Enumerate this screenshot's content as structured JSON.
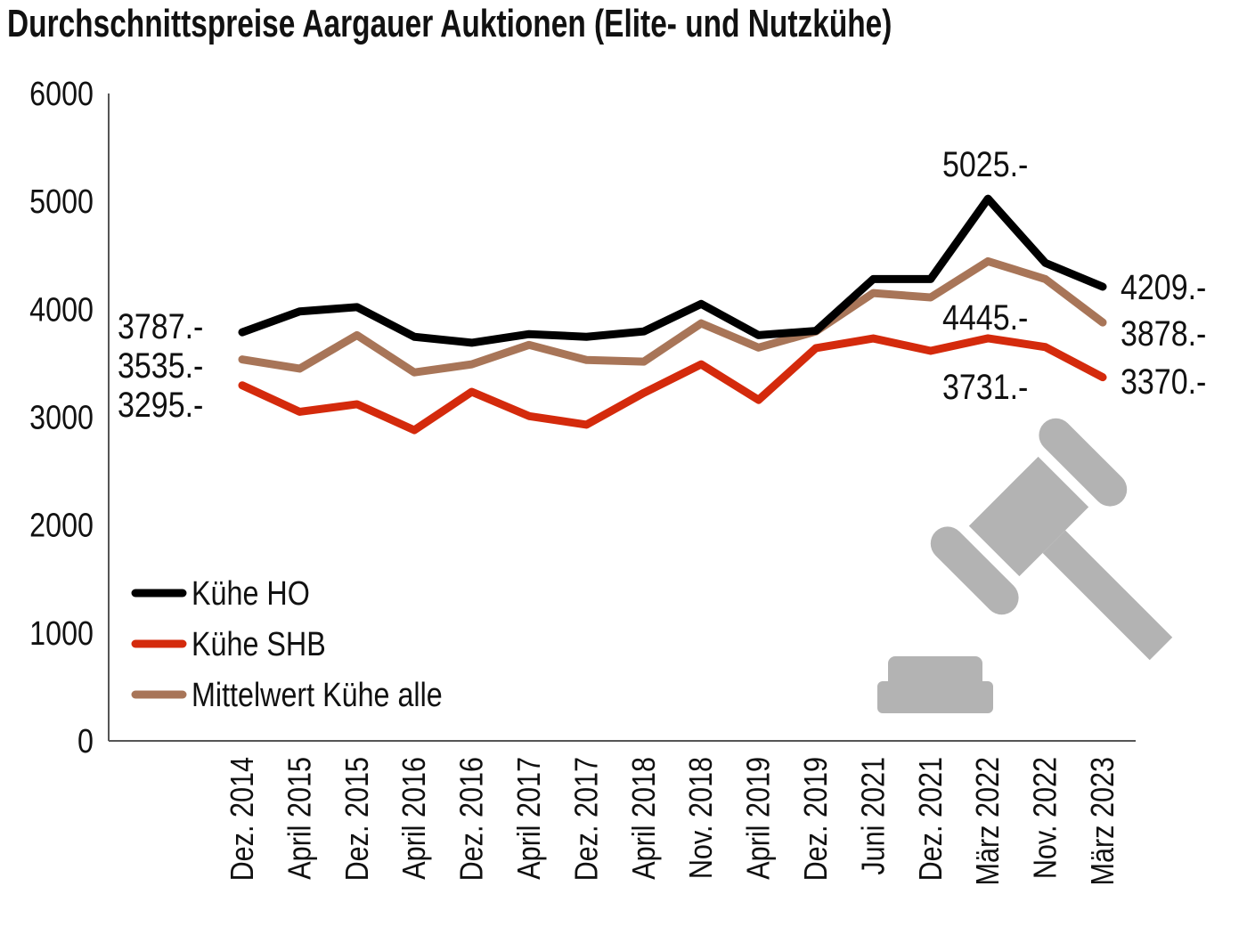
{
  "chart_data": {
    "type": "line",
    "title": "Durchschnittspreise Aargauer Auktionen (Elite- und Nutzkühe)",
    "xlabel": "",
    "ylabel": "",
    "ylim": [
      0,
      6000
    ],
    "yticks": [
      "0",
      "1000",
      "2000",
      "3000",
      "4000",
      "5000",
      "6000"
    ],
    "grid": false,
    "legend_placement": "bottom-left",
    "categories": [
      "Dez. 2014",
      "April 2015",
      "Dez. 2015",
      "April 2016",
      "Dez. 2016",
      "April 2017",
      "Dez. 2017",
      "April 2018",
      "Nov. 2018",
      "April 2019",
      "Dez. 2019",
      "Juni 2021",
      "Dez. 2021",
      "März 2022",
      "Nov. 2022",
      "März 2023"
    ],
    "series": [
      {
        "name": "Kühe HO",
        "color": "#000000",
        "values": [
          3787,
          3980,
          4020,
          3745,
          3690,
          3770,
          3745,
          3795,
          4050,
          3760,
          3800,
          4280,
          4280,
          5025,
          4430,
          4209
        ]
      },
      {
        "name": "Kühe SHB",
        "color": "#d42a0c",
        "values": [
          3295,
          3050,
          3120,
          2880,
          3235,
          3010,
          2930,
          3225,
          3490,
          3160,
          3640,
          3730,
          3615,
          3731,
          3650,
          3370
        ]
      },
      {
        "name": "Mittelwert Kühe alle",
        "color": "#a87558",
        "values": [
          3535,
          3450,
          3760,
          3415,
          3490,
          3670,
          3530,
          3515,
          3870,
          3645,
          3795,
          4150,
          4110,
          4445,
          4280,
          3878
        ]
      }
    ],
    "annotations": [
      {
        "text": "3787.-",
        "series": 0,
        "index": 0
      },
      {
        "text": "3535.-",
        "series": 2,
        "index": 0
      },
      {
        "text": "3295.-",
        "series": 1,
        "index": 0
      },
      {
        "text": "5025.-",
        "series": 0,
        "index": 13
      },
      {
        "text": "4445.-",
        "series": 2,
        "index": 13
      },
      {
        "text": "3731.-",
        "series": 1,
        "index": 13
      },
      {
        "text": "4209.-",
        "series": 0,
        "index": 15
      },
      {
        "text": "3878.-",
        "series": 2,
        "index": 15
      },
      {
        "text": "3370.-",
        "series": 1,
        "index": 15
      }
    ],
    "decoration_icon": "gavel-icon",
    "decoration_color": "#b3b3b3"
  }
}
